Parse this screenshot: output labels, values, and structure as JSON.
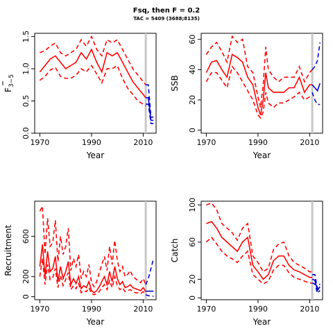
{
  "title": "Fsq, then F = 0.2",
  "subtitle": "TAC = 5409 (3688;8135)",
  "colors": {
    "hist": "#ff0000",
    "proj": "#0000cc",
    "ref": "#c8c8c8",
    "axis": "#000000"
  },
  "chart_data": [
    {
      "type": "line",
      "id": "fbar",
      "ylabel_main": "F",
      "ylabel_sub": "3−5",
      "xlabel": "Year",
      "xlim": [
        1968,
        2015
      ],
      "ylim": [
        0,
        1.55
      ],
      "xticks": [
        1970,
        1990,
        2010
      ],
      "yticks": [
        0.0,
        0.5,
        1.0,
        1.5
      ],
      "ref_year": 2011,
      "hist": {
        "x": [
          1970,
          1972,
          1974,
          1976,
          1978,
          1980,
          1982,
          1984,
          1986,
          1988,
          1990,
          1992,
          1994,
          1996,
          1998,
          2000,
          2002,
          2004,
          2006,
          2008,
          2010,
          2011
        ],
        "mid": [
          0.95,
          1.05,
          1.15,
          1.2,
          1.1,
          1.0,
          1.05,
          1.1,
          1.25,
          1.15,
          1.3,
          1.1,
          0.95,
          1.25,
          1.2,
          1.25,
          1.1,
          0.95,
          0.8,
          0.7,
          0.6,
          0.55
        ],
        "lo": [
          0.82,
          0.88,
          0.98,
          1.02,
          0.88,
          0.85,
          0.85,
          0.9,
          1.0,
          0.95,
          1.05,
          0.92,
          0.78,
          1.0,
          1.0,
          1.05,
          0.85,
          0.7,
          0.6,
          0.5,
          0.45,
          0.42
        ],
        "hi": [
          1.25,
          1.28,
          1.35,
          1.4,
          1.25,
          1.2,
          1.25,
          1.3,
          1.45,
          1.35,
          1.5,
          1.3,
          1.2,
          1.45,
          1.4,
          1.45,
          1.3,
          1.15,
          1.0,
          0.9,
          0.8,
          0.75
        ]
      },
      "proj": {
        "x": [
          2011,
          2012,
          2013,
          2014
        ],
        "mid": [
          0.55,
          0.55,
          0.2,
          0.2
        ],
        "lo": [
          0.45,
          0.45,
          0.15,
          0.15
        ],
        "hi": [
          0.75,
          0.75,
          0.25,
          0.25
        ]
      }
    },
    {
      "type": "line",
      "id": "ssb",
      "ylabel": "SSB",
      "xlabel": "Year",
      "xlim": [
        1968,
        2015
      ],
      "ylim": [
        -2,
        64
      ],
      "xticks": [
        1970,
        1990,
        2010
      ],
      "yticks": [
        0,
        20,
        40,
        60
      ],
      "ref_year": 2011,
      "hist": {
        "x": [
          1970,
          1972,
          1974,
          1976,
          1978,
          1980,
          1982,
          1984,
          1986,
          1988,
          1990,
          1991,
          1992,
          1993,
          1994,
          1996,
          1998,
          2000,
          2002,
          2004,
          2006,
          2008,
          2010,
          2011
        ],
        "mid": [
          38,
          45,
          46,
          40,
          35,
          50,
          48,
          45,
          35,
          30,
          15,
          10,
          20,
          38,
          28,
          25,
          25,
          25,
          28,
          28,
          35,
          25,
          30,
          30
        ],
        "lo": [
          32,
          38,
          38,
          33,
          28,
          42,
          38,
          32,
          26,
          20,
          10,
          8,
          12,
          25,
          18,
          15,
          18,
          18,
          20,
          22,
          25,
          20,
          22,
          22
        ],
        "hi": [
          50,
          55,
          58,
          52,
          45,
          62,
          58,
          60,
          42,
          38,
          22,
          15,
          30,
          55,
          40,
          35,
          32,
          35,
          35,
          35,
          42,
          32,
          38,
          40
        ]
      },
      "proj": {
        "x": [
          2011,
          2012,
          2013,
          2014
        ],
        "mid": [
          30,
          28,
          26,
          31
        ],
        "lo": [
          25,
          20,
          17,
          17
        ],
        "hi": [
          40,
          42,
          46,
          58
        ]
      }
    },
    {
      "type": "line",
      "id": "recruitment",
      "ylabel": "Recruitment",
      "xlabel": "Year",
      "xlim": [
        1968,
        2015
      ],
      "ylim": [
        -30,
        950
      ],
      "xticks": [
        1970,
        1990,
        2010
      ],
      "yticks": [
        0,
        200,
        600
      ],
      "ref_year": 2011,
      "hist": {
        "x": [
          1970,
          1971,
          1972,
          1973,
          1974,
          1975,
          1976,
          1977,
          1978,
          1979,
          1980,
          1981,
          1982,
          1983,
          1984,
          1985,
          1986,
          1987,
          1988,
          1989,
          1990,
          1991,
          1992,
          1993,
          1994,
          1995,
          1996,
          1997,
          1998,
          1999,
          2000,
          2001,
          2002,
          2003,
          2004,
          2005,
          2006,
          2007,
          2008,
          2009,
          2010,
          2011
        ],
        "mid": [
          300,
          520,
          200,
          450,
          250,
          280,
          400,
          150,
          300,
          180,
          250,
          350,
          120,
          180,
          130,
          200,
          80,
          110,
          90,
          150,
          60,
          40,
          60,
          100,
          150,
          200,
          120,
          250,
          150,
          300,
          180,
          120,
          150,
          90,
          100,
          120,
          90,
          80,
          70,
          60,
          90,
          50
        ],
        "lo": [
          200,
          380,
          120,
          320,
          170,
          190,
          280,
          90,
          210,
          110,
          170,
          240,
          70,
          110,
          80,
          130,
          40,
          60,
          50,
          90,
          30,
          20,
          30,
          50,
          90,
          120,
          70,
          160,
          90,
          200,
          110,
          70,
          90,
          50,
          60,
          70,
          50,
          40,
          40,
          30,
          50,
          30
        ],
        "hi": [
          850,
          900,
          420,
          780,
          500,
          540,
          760,
          350,
          600,
          420,
          500,
          680,
          260,
          380,
          300,
          420,
          180,
          250,
          200,
          320,
          140,
          100,
          150,
          240,
          320,
          400,
          260,
          500,
          320,
          560,
          360,
          250,
          300,
          200,
          220,
          260,
          200,
          180,
          160,
          140,
          180,
          120
        ]
      },
      "proj": {
        "x": [
          2011,
          2012,
          2013,
          2014
        ],
        "mid": [
          55,
          55,
          55,
          55
        ],
        "lo": [
          20,
          10,
          5,
          5
        ],
        "hi": [
          120,
          180,
          280,
          380
        ]
      }
    },
    {
      "type": "line",
      "id": "catch",
      "ylabel": "Catch",
      "xlabel": "Year",
      "xlim": [
        1968,
        2015
      ],
      "ylim": [
        -2,
        104
      ],
      "xticks": [
        1970,
        1990,
        2010
      ],
      "yticks": [
        0,
        20,
        60,
        100
      ],
      "ref_year": 2011,
      "hist": {
        "x": [
          1970,
          1972,
          1974,
          1976,
          1978,
          1980,
          1982,
          1984,
          1986,
          1988,
          1990,
          1992,
          1994,
          1996,
          1998,
          2000,
          2002,
          2004,
          2006,
          2008,
          2010,
          2011
        ],
        "mid": [
          80,
          82,
          75,
          65,
          60,
          55,
          50,
          60,
          65,
          35,
          28,
          20,
          25,
          40,
          45,
          45,
          35,
          30,
          28,
          25,
          22,
          22
        ],
        "lo": [
          60,
          65,
          58,
          50,
          45,
          42,
          38,
          45,
          50,
          25,
          20,
          15,
          18,
          30,
          35,
          35,
          27,
          22,
          20,
          18,
          16,
          16
        ],
        "hi": [
          100,
          102,
          95,
          80,
          75,
          70,
          62,
          75,
          80,
          45,
          38,
          28,
          32,
          52,
          58,
          60,
          45,
          38,
          35,
          32,
          28,
          28
        ]
      },
      "proj": {
        "x": [
          2011,
          2012,
          2013,
          2014
        ],
        "mid": [
          20,
          19,
          8,
          12
        ],
        "lo": [
          16,
          15,
          5,
          8
        ],
        "hi": [
          25,
          25,
          10,
          15
        ]
      }
    }
  ]
}
